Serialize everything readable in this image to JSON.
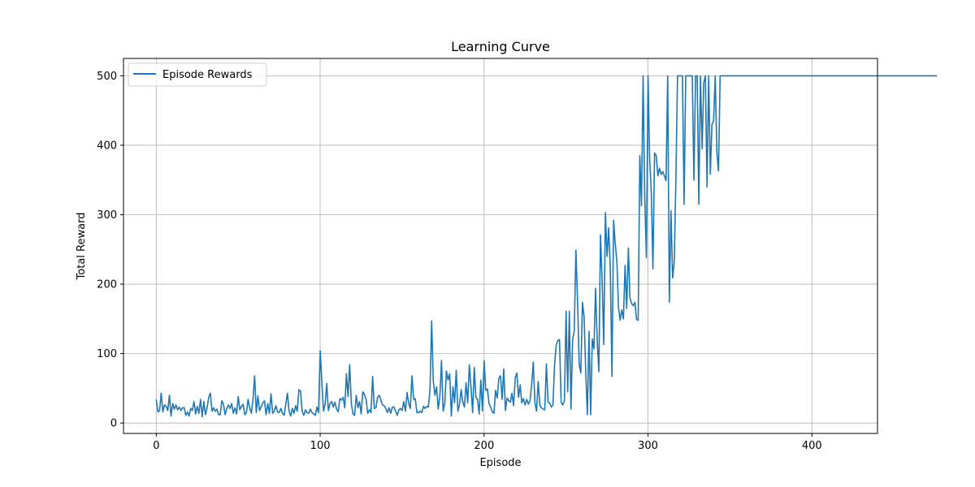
{
  "chart_data": {
    "type": "line",
    "title": "Learning Curve",
    "xlabel": "Episode",
    "ylabel": "Total Reward",
    "xlim": [
      -20,
      440
    ],
    "ylim": [
      -15,
      525
    ],
    "xticks": [
      0,
      100,
      200,
      300,
      400
    ],
    "yticks": [
      0,
      100,
      200,
      300,
      400,
      500
    ],
    "grid": true,
    "legend_position": "top-left",
    "series": [
      {
        "name": "Episode Rewards",
        "color": "#1f77b4",
        "x_start": 0,
        "x_step": 1,
        "values": [
          33,
          16,
          18,
          43,
          16,
          26,
          24,
          18,
          40,
          10,
          28,
          20,
          26,
          19,
          23,
          18,
          22,
          22,
          11,
          16,
          10,
          21,
          18,
          31,
          13,
          24,
          14,
          34,
          9,
          31,
          12,
          22,
          37,
          43,
          17,
          22,
          17,
          20,
          12,
          12,
          32,
          27,
          12,
          21,
          26,
          21,
          28,
          14,
          22,
          13,
          38,
          19,
          24,
          27,
          12,
          15,
          34,
          22,
          14,
          34,
          68,
          15,
          39,
          18,
          23,
          29,
          32,
          12,
          28,
          14,
          42,
          14,
          17,
          25,
          16,
          15,
          21,
          14,
          11,
          27,
          43,
          17,
          10,
          21,
          14,
          25,
          17,
          48,
          46,
          17,
          11,
          19,
          15,
          14,
          20,
          15,
          13,
          11,
          23,
          15,
          104,
          60,
          17,
          27,
          57,
          18,
          28,
          31,
          23,
          30,
          20,
          16,
          35,
          33,
          37,
          22,
          71,
          38,
          84,
          28,
          13,
          11,
          40,
          22,
          31,
          13,
          45,
          41,
          34,
          14,
          19,
          15,
          67,
          21,
          22,
          37,
          40,
          33,
          26,
          25,
          21,
          15,
          22,
          14,
          23,
          23,
          17,
          11,
          19,
          21,
          18,
          31,
          17,
          44,
          29,
          21,
          68,
          34,
          35,
          15,
          15,
          17,
          15,
          24,
          21,
          24,
          23,
          48,
          147,
          60,
          40,
          52,
          20,
          38,
          90,
          17,
          28,
          75,
          62,
          71,
          10,
          52,
          29,
          76,
          17,
          27,
          48,
          30,
          23,
          58,
          29,
          84,
          51,
          15,
          80,
          37,
          34,
          13,
          62,
          17,
          90,
          47,
          49,
          28,
          23,
          16,
          14,
          47,
          36,
          65,
          68,
          34,
          78,
          18,
          36,
          32,
          30,
          43,
          25,
          65,
          72,
          37,
          55,
          29,
          35,
          26,
          34,
          27,
          32,
          55,
          88,
          29,
          17,
          60,
          26,
          22,
          20,
          19,
          85,
          30,
          29,
          23,
          26,
          84,
          112,
          119,
          120,
          30,
          26,
          32,
          161,
          45,
          161,
          20,
          120,
          133,
          249,
          177,
          85,
          72,
          174,
          153,
          74,
          12,
          132,
          12,
          121,
          107,
          194,
          119,
          74,
          271,
          205,
          113,
          303,
          240,
          281,
          220,
          67,
          292,
          258,
          233,
          166,
          148,
          163,
          150,
          227,
          165,
          252,
          180,
          172,
          169,
          174,
          149,
          148,
          385,
          313,
          500,
          325,
          238,
          500,
          380,
          333,
          222,
          389,
          385,
          356,
          367,
          358,
          362,
          356,
          349,
          500,
          174,
          306,
          209,
          232,
          350,
          500,
          500,
          500,
          500,
          315,
          500,
          500,
          500,
          500,
          500,
          350,
          500,
          500,
          315,
          500,
          395,
          490,
          500,
          340,
          500,
          358,
          430,
          435,
          500,
          390,
          363,
          500,
          500,
          500,
          500,
          500,
          500,
          500,
          500,
          500,
          500,
          500,
          500,
          500,
          500,
          500,
          500,
          500,
          500,
          500,
          500,
          500,
          500,
          500,
          500,
          500,
          500,
          500,
          500,
          500,
          500,
          500,
          500,
          500,
          500,
          500,
          500,
          500,
          500,
          500,
          500,
          500,
          500,
          500,
          500,
          500,
          500,
          500,
          500,
          500,
          500,
          500,
          500,
          500,
          500,
          500,
          500,
          500,
          500,
          500,
          500,
          500,
          500,
          500,
          500,
          500,
          500,
          500,
          500,
          500,
          500,
          500,
          500,
          500,
          500,
          500,
          500,
          500,
          500,
          500,
          500,
          500,
          500,
          500,
          500,
          500,
          500,
          500,
          500,
          500,
          500,
          500,
          500,
          500,
          500,
          500,
          500,
          500,
          500,
          500,
          500,
          500,
          500,
          500,
          500,
          500,
          500,
          500,
          500,
          500,
          500,
          500,
          500,
          500,
          500,
          500,
          500,
          500,
          500,
          500,
          500,
          500,
          500,
          500,
          500,
          500,
          500,
          500,
          500,
          500,
          500,
          500,
          500,
          500
        ]
      }
    ]
  }
}
